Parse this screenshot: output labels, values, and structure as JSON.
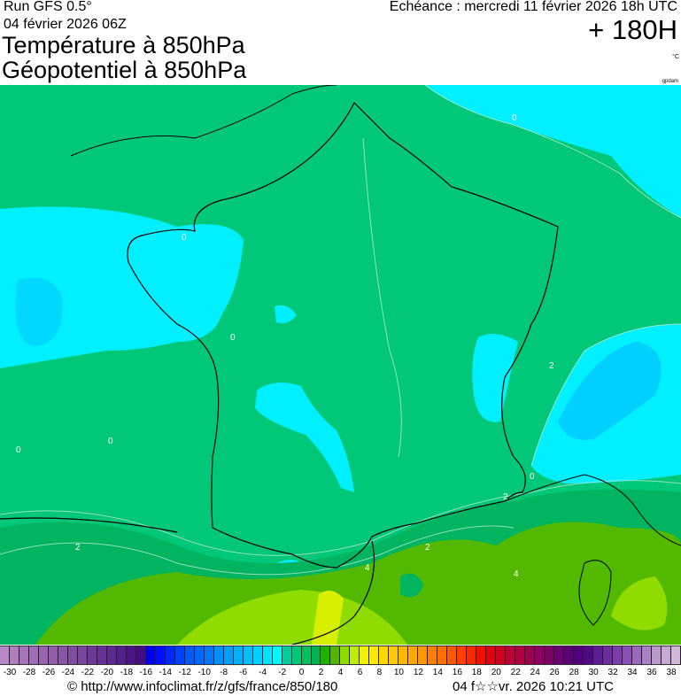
{
  "header": {
    "run": "Run GFS 0.5°",
    "run_date": "04 février 2026 06Z",
    "title_line1": "Température à 850hPa",
    "title_line2": "Géopotentiel à 850hPa",
    "echeance": "Echéance : mercredi 11 février 2026 18h UTC",
    "lead_time": "+ 180H",
    "unit": "°C",
    "credit": "gpdam"
  },
  "map": {
    "region": "France",
    "contour_labels": [
      "0",
      "0",
      "0",
      "0",
      "0",
      "0",
      "2",
      "2",
      "2",
      "2",
      "4",
      "4"
    ],
    "colors": {
      "green_0_2": "#00c878",
      "green_2_4": "#00b460",
      "green_4_6": "#52b800",
      "yellowgreen_6_8": "#90dc00",
      "yellow_8": "#d8f000",
      "cyan_-2_0": "#00f0ff",
      "lightblue_-4_-2": "#00c8ff"
    }
  },
  "colorbar": {
    "min": -31,
    "max": 39,
    "colors": [
      "#b888c8",
      "#b07cc0",
      "#a874bc",
      "#a06cb6",
      "#9864b0",
      "#905cac",
      "#8854a6",
      "#804ca2",
      "#78449e",
      "#6e3a9a",
      "#663296",
      "#5c2a92",
      "#54208c",
      "#4c1488",
      "#440c84",
      "#0000f0",
      "#0010ff",
      "#0028ff",
      "#0040ff",
      "#0058ff",
      "#0068ff",
      "#0078ff",
      "#0090ff",
      "#00a0ff",
      "#00b0ff",
      "#00c0ff",
      "#00d0ff",
      "#00e4ff",
      "#00f8ff",
      "#00d0a0",
      "#00c878",
      "#00c060",
      "#00b450",
      "#20b000",
      "#54b400",
      "#90dc00",
      "#c0ec00",
      "#f0f000",
      "#ffe800",
      "#ffd800",
      "#ffc800",
      "#ffb800",
      "#ffa800",
      "#ff9800",
      "#ff8000",
      "#ff7000",
      "#ff5800",
      "#ff4000",
      "#ff2800",
      "#f01000",
      "#e00010",
      "#d00020",
      "#c00030",
      "#b00040",
      "#a00050",
      "#900060",
      "#7c0068",
      "#6c0070",
      "#5c0078",
      "#500080",
      "#500888",
      "#5c1c94",
      "#6c2ca0",
      "#7c3cac",
      "#8c50b4",
      "#9c68bc",
      "#ac80c4",
      "#bc98cc",
      "#c8a8d4",
      "#d4b8dc"
    ],
    "labels": [
      "-30",
      "-28",
      "-26",
      "-24",
      "-22",
      "-20",
      "-18",
      "-16",
      "-14",
      "-12",
      "-10",
      "-8",
      "-6",
      "-4",
      "-2",
      "0",
      "2",
      "4",
      "6",
      "8",
      "10",
      "12",
      "14",
      "16",
      "18",
      "20",
      "22",
      "24",
      "26",
      "28",
      "30",
      "32",
      "34",
      "36",
      "38"
    ]
  },
  "footer": {
    "url": "© http://www.infoclimat.fr/z/gfs/france/850/180",
    "generated": "04 f☆☆vr. 2026 10:21 UTC"
  }
}
